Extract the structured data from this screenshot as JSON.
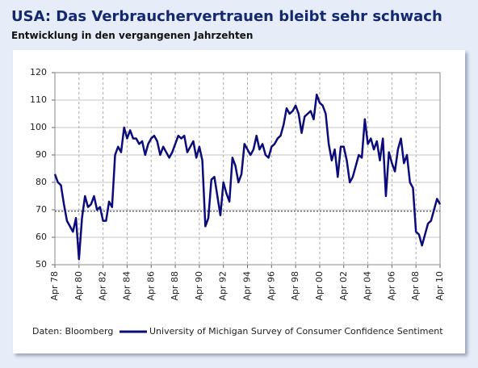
{
  "chart_data": {
    "type": "line",
    "title": "USA: Das Verbrauchervertrauen bleibt sehr schwach",
    "subtitle": "Entwicklung in den vergangenen Jahrzehten",
    "source": "Daten: Bloomberg",
    "categories": [
      "Apr 78",
      null,
      null,
      null,
      null,
      null,
      null,
      null,
      "Apr 80",
      null,
      null,
      null,
      null,
      null,
      null,
      null,
      "Apr 82",
      null,
      null,
      null,
      null,
      null,
      null,
      null,
      "Apr 84",
      null,
      null,
      null,
      null,
      null,
      null,
      null,
      "Apr 86",
      null,
      null,
      null,
      null,
      null,
      null,
      null,
      "Apr 88",
      null,
      null,
      null,
      null,
      null,
      null,
      null,
      "Apr 90",
      null,
      null,
      null,
      null,
      null,
      null,
      null,
      "Apr 92",
      null,
      null,
      null,
      null,
      null,
      null,
      null,
      "Apr 94",
      null,
      null,
      null,
      null,
      null,
      null,
      null,
      "Apr 96",
      null,
      null,
      null,
      null,
      null,
      null,
      null,
      "Apr 98",
      null,
      null,
      null,
      null,
      null,
      null,
      null,
      "Apr 00",
      null,
      null,
      null,
      null,
      null,
      null,
      null,
      "Apr 02",
      null,
      null,
      null,
      null,
      null,
      null,
      null,
      "Apr 04",
      null,
      null,
      null,
      null,
      null,
      null,
      null,
      "Apr 06",
      null,
      null,
      null,
      null,
      null,
      null,
      null,
      "Apr 08",
      null,
      null,
      null,
      null,
      null,
      null,
      null,
      "Apr 10"
    ],
    "series": [
      {
        "name": "University of Michigan Survey of Consumer Confidence Sentiment",
        "color": "#0b0b7a",
        "values": [
          83,
          80,
          79,
          72,
          66,
          64,
          62,
          67,
          52,
          67,
          75,
          71,
          72,
          75,
          70,
          71,
          66,
          66,
          73,
          71,
          90,
          93,
          91,
          100,
          96,
          99,
          96,
          96,
          94,
          95,
          90,
          94,
          96,
          97,
          95,
          90,
          93,
          91,
          89,
          91,
          94,
          97,
          96,
          97,
          91,
          93,
          95,
          89,
          93,
          88,
          64,
          67,
          81,
          82,
          75,
          68,
          80,
          76,
          73,
          89,
          86,
          80,
          83,
          94,
          92,
          90,
          92,
          97,
          92,
          94,
          90,
          89,
          93,
          94,
          96,
          97,
          101,
          107,
          105,
          106,
          108,
          105,
          98,
          104,
          105,
          106,
          103,
          112,
          109,
          108,
          105,
          94,
          88,
          92,
          82,
          93,
          93,
          88,
          80,
          82,
          86,
          90,
          89,
          103,
          94,
          96,
          92,
          95,
          88,
          96,
          75,
          91,
          87,
          84,
          92,
          96,
          87,
          90,
          80,
          78,
          62,
          61,
          57,
          61,
          65,
          66,
          70,
          74,
          72
        ]
      }
    ],
    "reference_line": 69.5,
    "ylim": [
      50,
      120
    ],
    "yticks": [
      50,
      60,
      70,
      80,
      90,
      100,
      110,
      120
    ],
    "grid": true
  }
}
